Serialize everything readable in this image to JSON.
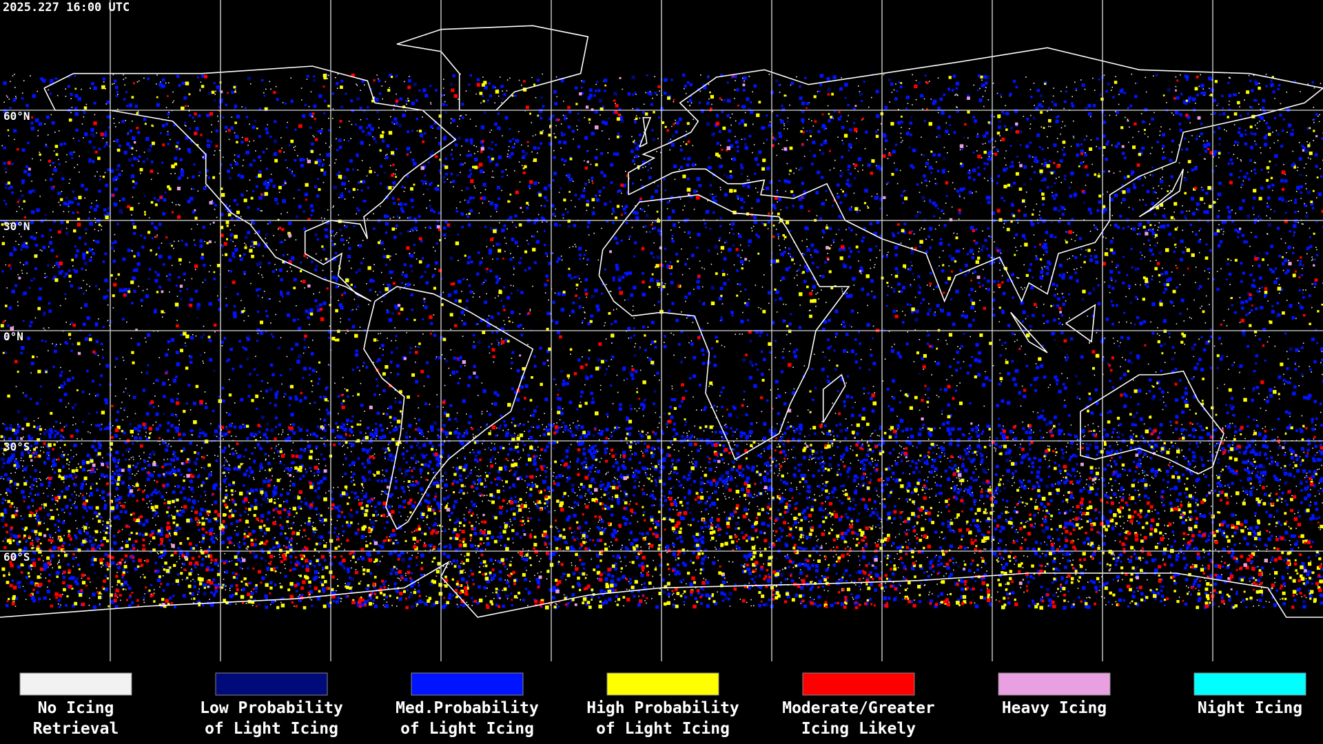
{
  "header": {
    "timestamp": "2025.227 16:00 UTC"
  },
  "map": {
    "lat_labels": [
      "60°N",
      "30°N",
      "0°N",
      "30°S",
      "60°S"
    ]
  },
  "legend": [
    {
      "lines": [
        "No Icing",
        "Retrieval"
      ],
      "color": "#f2f2f2"
    },
    {
      "lines": [
        "Low Probability",
        "of Light Icing"
      ],
      "color": "#000a78"
    },
    {
      "lines": [
        "Med.Probability",
        "of Light Icing"
      ],
      "color": "#0014ff"
    },
    {
      "lines": [
        "High Probability",
        "of Light Icing"
      ],
      "color": "#ffff00"
    },
    {
      "lines": [
        "Moderate/Greater",
        "Icing Likely"
      ],
      "color": "#ff0000"
    },
    {
      "lines": [
        "Heavy Icing"
      ],
      "color": "#e8a0e0"
    },
    {
      "lines": [
        "Night Icing"
      ],
      "color": "#00ffff"
    }
  ]
}
